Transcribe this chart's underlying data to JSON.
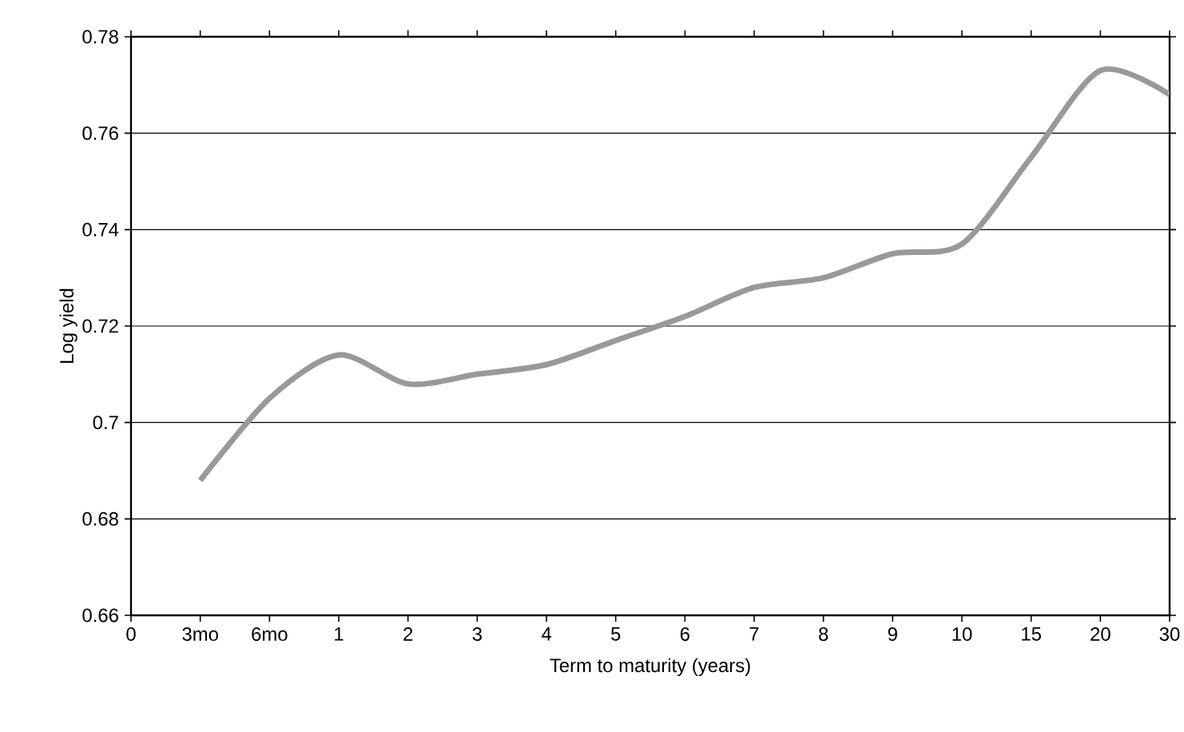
{
  "chart_data": {
    "type": "line",
    "xlabel": "Term to maturity (years)",
    "ylabel": "Log yield",
    "categories": [
      "0",
      "3mo",
      "6mo",
      "1",
      "2",
      "3",
      "4",
      "5",
      "6",
      "7",
      "8",
      "9",
      "10",
      "15",
      "20",
      "30"
    ],
    "series": [
      {
        "color": "#999999",
        "values": [
          null,
          0.688,
          0.705,
          0.714,
          0.708,
          0.71,
          0.712,
          0.717,
          0.722,
          0.728,
          0.73,
          0.735,
          0.737,
          0.755,
          0.773,
          0.768
        ]
      }
    ],
    "ylim": [
      0.66,
      0.78
    ],
    "yticks": [
      0.66,
      0.68,
      0.7,
      0.72,
      0.74,
      0.76,
      0.78
    ],
    "grid": "y",
    "marker": "none",
    "line_style": "solid"
  }
}
